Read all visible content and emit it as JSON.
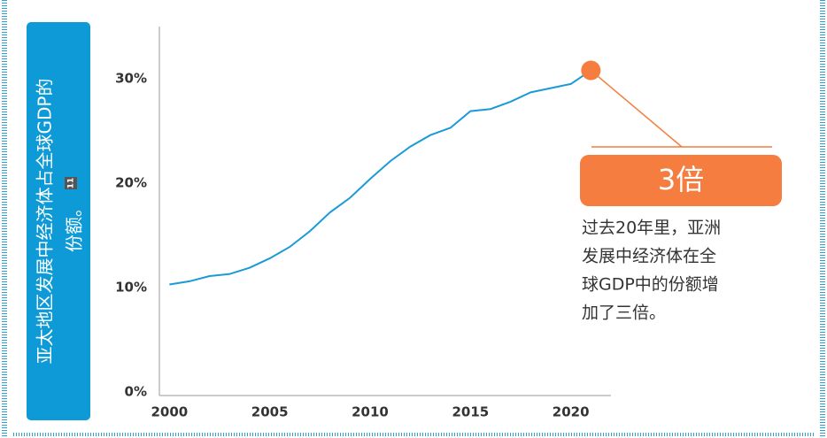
{
  "chart_data": {
    "type": "line",
    "side_label": [
      "亚太地区发展中经济体占全球GDP的",
      "份额。"
    ],
    "note_ref": "11",
    "x": [
      2000,
      2001,
      2002,
      2003,
      2004,
      2005,
      2006,
      2007,
      2008,
      2009,
      2010,
      2011,
      2012,
      2013,
      2014,
      2015,
      2016,
      2017,
      2018,
      2019,
      2020,
      2021
    ],
    "series": [
      {
        "color": "#1a9bd7",
        "values": [
          10.3,
          10.6,
          11.1,
          11.3,
          11.9,
          12.8,
          13.9,
          15.4,
          17.2,
          18.6,
          20.4,
          22.1,
          23.5,
          24.6,
          25.3,
          26.9,
          27.1,
          27.8,
          28.7,
          29.1,
          29.5,
          30.8
        ]
      }
    ],
    "xlim": [
      1999.5,
      2022
    ],
    "xticks": [
      2000,
      2005,
      2010,
      2015,
      2020
    ],
    "ylim": [
      0,
      35
    ],
    "yticks": [
      {
        "value": 0,
        "label": "0%"
      },
      {
        "value": 10,
        "label": "10%"
      },
      {
        "value": 20,
        "label": "20%"
      },
      {
        "value": 30,
        "label": "30%"
      }
    ],
    "highlight_color": "#f47d3f",
    "callout": {
      "headline": "3倍",
      "lines": [
        "过去20年里，亚洲",
        "发展中经济体在全",
        "球GDP中的份额增",
        "加了三倍。"
      ]
    }
  }
}
